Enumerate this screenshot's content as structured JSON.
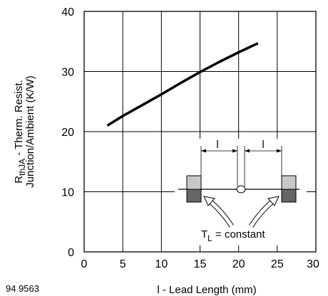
{
  "chart_data": {
    "type": "line",
    "title": "",
    "xlabel": "l - Lead Length (mm)",
    "ylabel_line1": "R thJA - Therm. Resist.",
    "ylabel_line2": "Junction/Ambient (K/W)",
    "ylabel_main": "R",
    "ylabel_sub": "thJA",
    "ylabel_rest": " - Therm. Resist.",
    "xlim": [
      0,
      30
    ],
    "ylim": [
      0,
      40
    ],
    "x_ticks": [
      0,
      5,
      10,
      15,
      20,
      25,
      30
    ],
    "y_ticks": [
      0,
      10,
      20,
      30,
      40
    ],
    "grid": true,
    "series": [
      {
        "x": [
          3,
          5,
          7.5,
          10,
          12.5,
          15,
          17.5,
          20,
          22.5
        ],
        "y": [
          21,
          22.6,
          24.4,
          26.2,
          28.1,
          29.9,
          31.6,
          33.2,
          34.7
        ]
      }
    ],
    "figure_id": "94 9563",
    "inset": {
      "dimension_labels": [
        "l",
        "l"
      ],
      "tl_main": "T",
      "tl_sub": "L",
      "tl_rest": " = constant"
    }
  }
}
